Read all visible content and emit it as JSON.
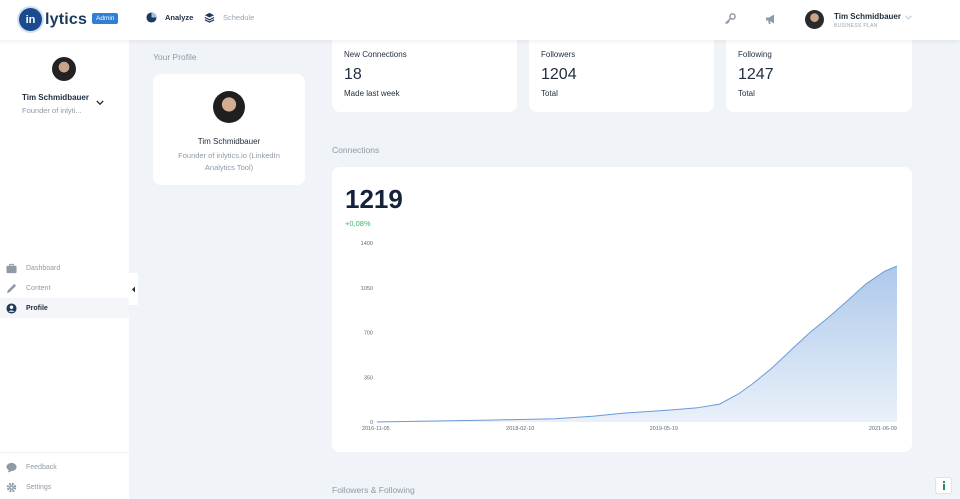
{
  "app": {
    "logo_mark": "in",
    "logo_text": "lytics",
    "admin_badge": "Admin"
  },
  "topnav": {
    "analyze": "Analyze",
    "schedule": "Schedule"
  },
  "user": {
    "name": "Tim Schmidbauer",
    "plan": "BUSINESS PLAN"
  },
  "sidebar": {
    "name": "Tim Schmidbauer",
    "role": "Founder of inlyti...",
    "items": [
      {
        "label": "Dashboard",
        "icon": "briefcase-icon"
      },
      {
        "label": "Content",
        "icon": "pencil-icon"
      },
      {
        "label": "Profile",
        "icon": "user-circle-icon",
        "active": true
      }
    ],
    "footer": [
      {
        "label": "Feedback",
        "icon": "chat-bubble-icon"
      },
      {
        "label": "Settings",
        "icon": "gear-icon"
      }
    ]
  },
  "profile": {
    "section_label": "Your Profile",
    "name": "Tim Schmidbauer",
    "description": "Founder of inlytics.io (LinkedIn Analytics Tool)"
  },
  "stats": [
    {
      "title": "New Connections",
      "value": "18",
      "sub": "Made last week"
    },
    {
      "title": "Followers",
      "value": "1204",
      "sub": "Total"
    },
    {
      "title": "Following",
      "value": "1247",
      "sub": "Total"
    }
  ],
  "connections": {
    "section_label": "Connections",
    "value": "1219",
    "change": "+0,08%"
  },
  "followers_section_label": "Followers & Following",
  "colors": {
    "accent": "#2f7fd6",
    "area_fill": "#a9c6ea",
    "area_line": "#6a9bd6",
    "positive": "#3cb371"
  },
  "chart_data": {
    "type": "area",
    "x_ticks": [
      "2016-11-05",
      "2018-02-10",
      "2019-05-19",
      "2021-06-09"
    ],
    "y_ticks": [
      0,
      350,
      700,
      1050,
      1400
    ],
    "ylim": [
      0,
      1400
    ],
    "xlim": [
      "2016-11-05",
      "2021-06-09"
    ],
    "x": [
      "2016-11-05",
      "2017-03-01",
      "2017-07-01",
      "2017-11-01",
      "2018-02-10",
      "2018-06-01",
      "2018-10-01",
      "2019-01-15",
      "2019-05-19",
      "2019-09-01",
      "2019-11-15",
      "2020-01-15",
      "2020-03-01",
      "2020-05-01",
      "2020-07-01",
      "2020-09-01",
      "2020-11-01",
      "2021-01-01",
      "2021-03-01",
      "2021-05-01",
      "2021-06-09"
    ],
    "values": [
      0,
      5,
      10,
      15,
      20,
      25,
      45,
      70,
      90,
      110,
      140,
      220,
      300,
      420,
      560,
      700,
      820,
      950,
      1080,
      1180,
      1219
    ]
  }
}
